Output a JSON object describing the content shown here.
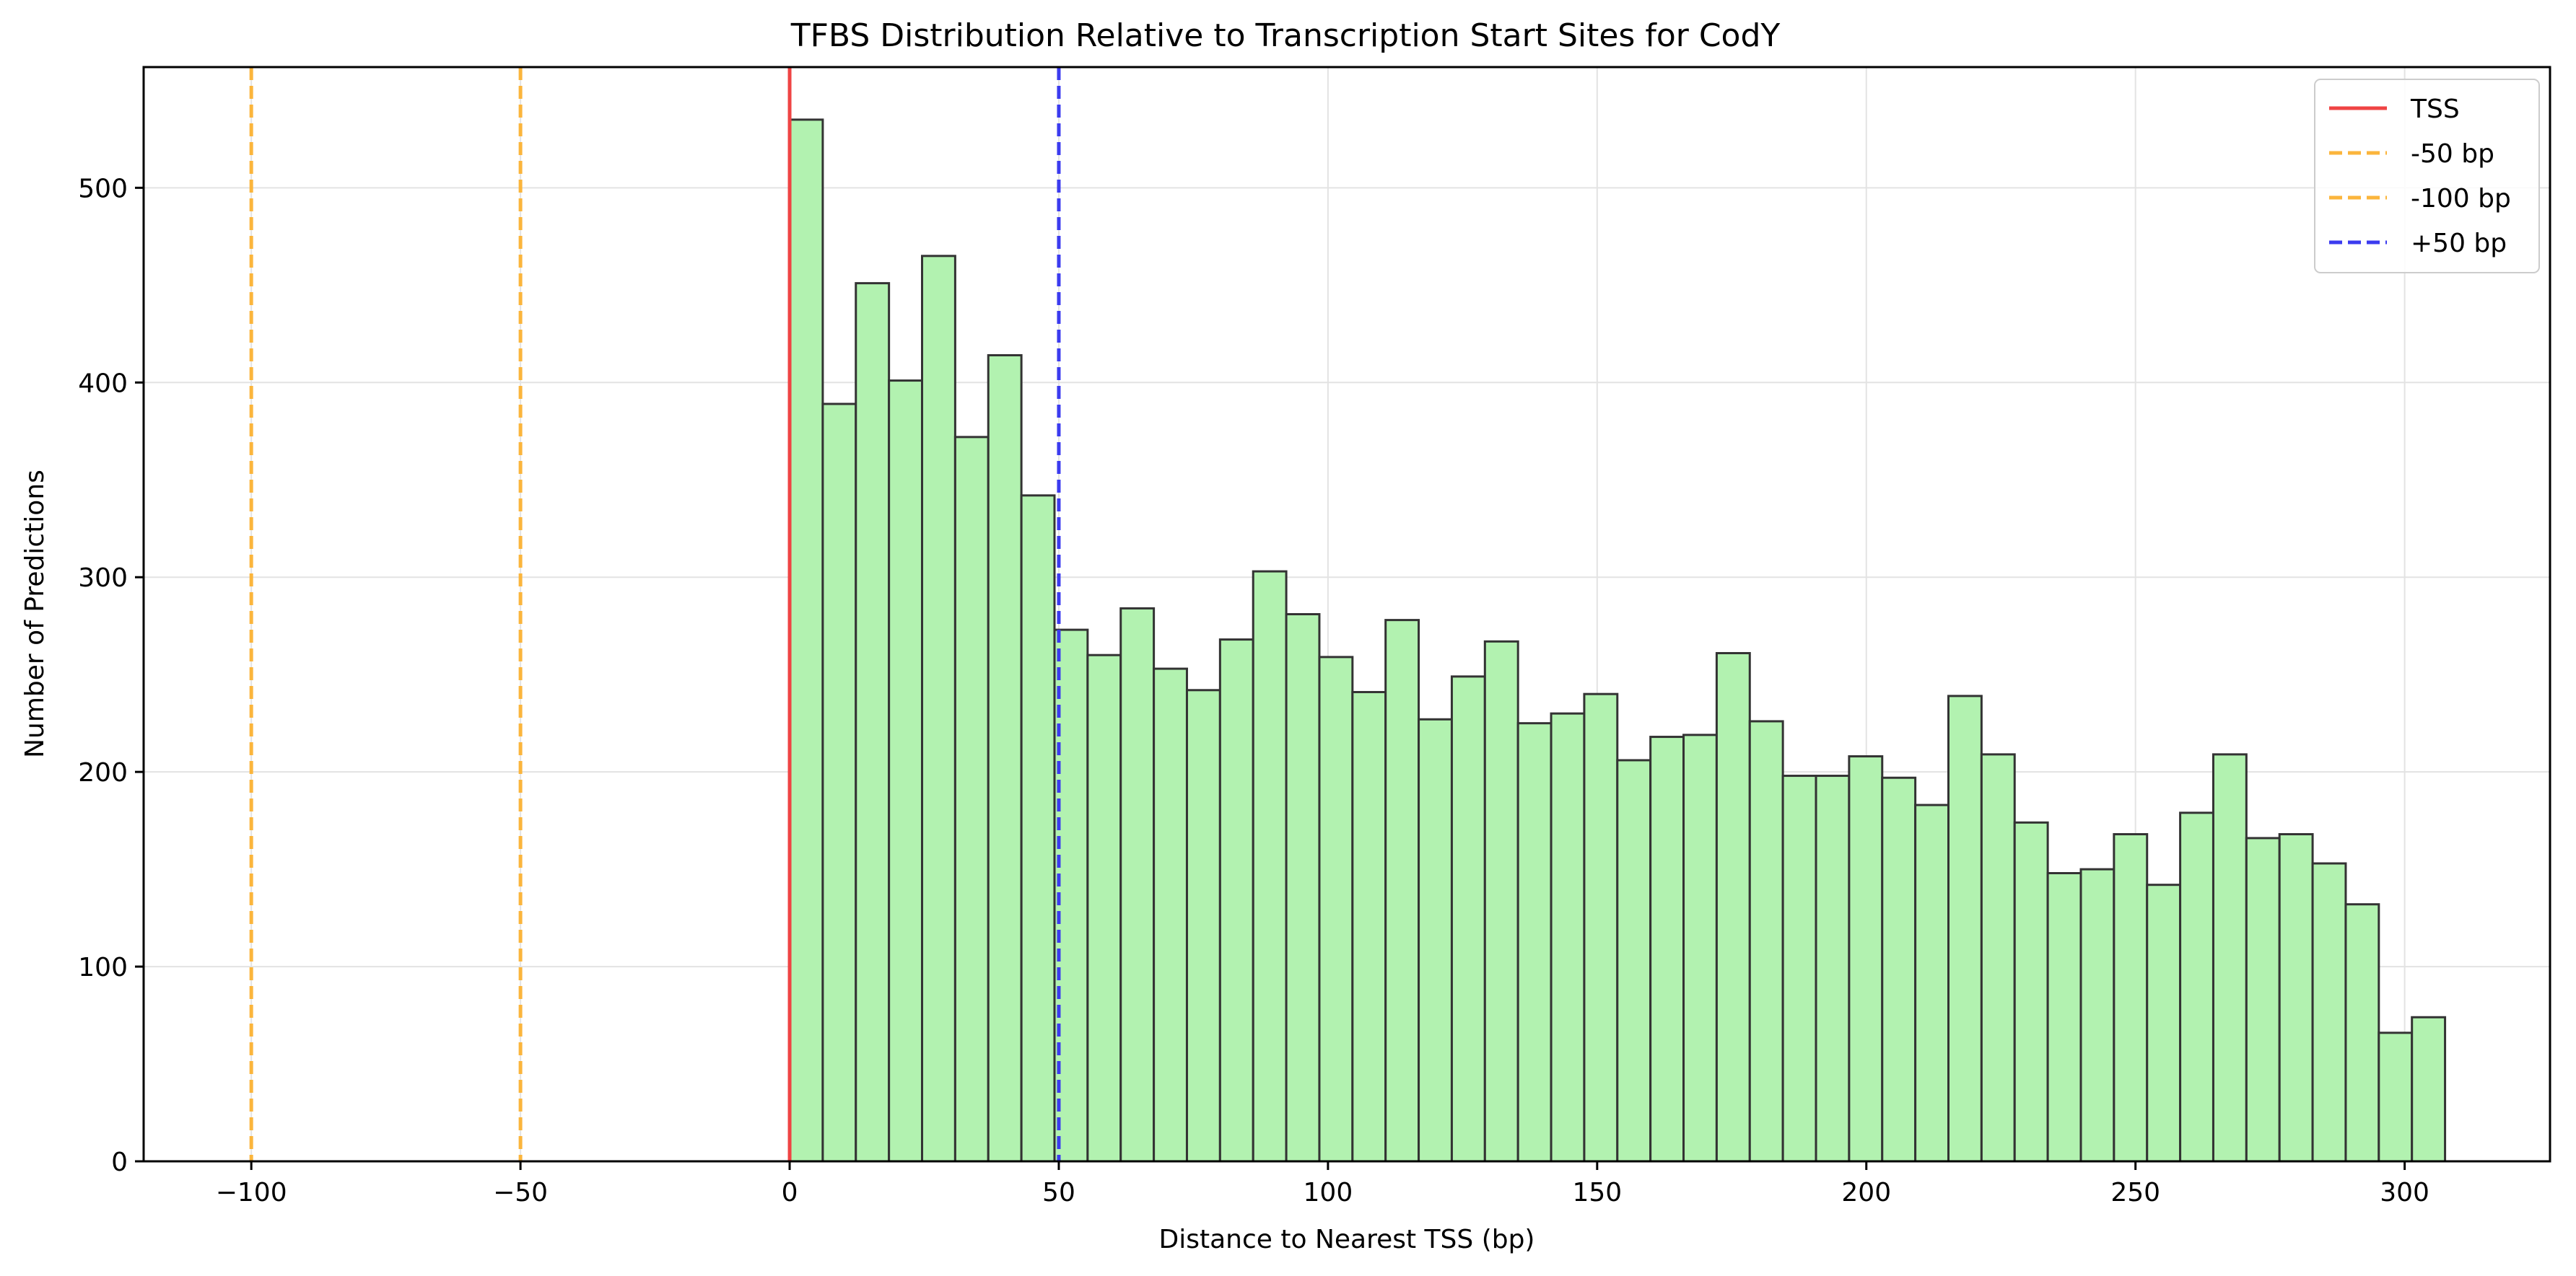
{
  "chart_data": {
    "type": "bar",
    "title": "TFBS Distribution Relative to Transcription Start Sites for CodY",
    "xlabel": "Distance to Nearest TSS (bp)",
    "ylabel": "Number of Predictions",
    "xlim": [
      -120,
      327
    ],
    "ylim": [
      0,
      562
    ],
    "xticks": [
      -100,
      -50,
      0,
      50,
      100,
      150,
      200,
      250,
      300
    ],
    "xtick_labels": [
      "−100",
      "−50",
      "0",
      "50",
      "100",
      "150",
      "200",
      "250",
      "300"
    ],
    "yticks": [
      0,
      100,
      200,
      300,
      400,
      500
    ],
    "ytick_labels": [
      "0",
      "100",
      "200",
      "300",
      "400",
      "500"
    ],
    "grid": true,
    "legend_position": "top-right",
    "bin_start": 0,
    "bin_width": 6.15,
    "values": [
      535,
      389,
      451,
      401,
      465,
      372,
      414,
      342,
      273,
      260,
      284,
      253,
      242,
      268,
      303,
      281,
      259,
      241,
      278,
      227,
      249,
      267,
      225,
      230,
      240,
      206,
      218,
      219,
      261,
      226,
      198,
      198,
      208,
      197,
      183,
      239,
      209,
      174,
      148,
      150,
      168,
      142,
      179,
      209,
      166,
      168,
      153,
      132,
      66,
      74
    ],
    "bar_color": "#b2f2b0",
    "bar_edge_color": "#333333",
    "reference_lines": [
      {
        "x": 0,
        "label": "TSS",
        "color": "#ef4444",
        "style": "solid"
      },
      {
        "x": -50,
        "label": "-50 bp",
        "color": "#fbb53c",
        "style": "dashed"
      },
      {
        "x": -100,
        "label": "-100 bp",
        "color": "#fbb53c",
        "style": "dashed"
      },
      {
        "x": 50,
        "label": "+50 bp",
        "color": "#3b3bef",
        "style": "dashed"
      }
    ]
  }
}
